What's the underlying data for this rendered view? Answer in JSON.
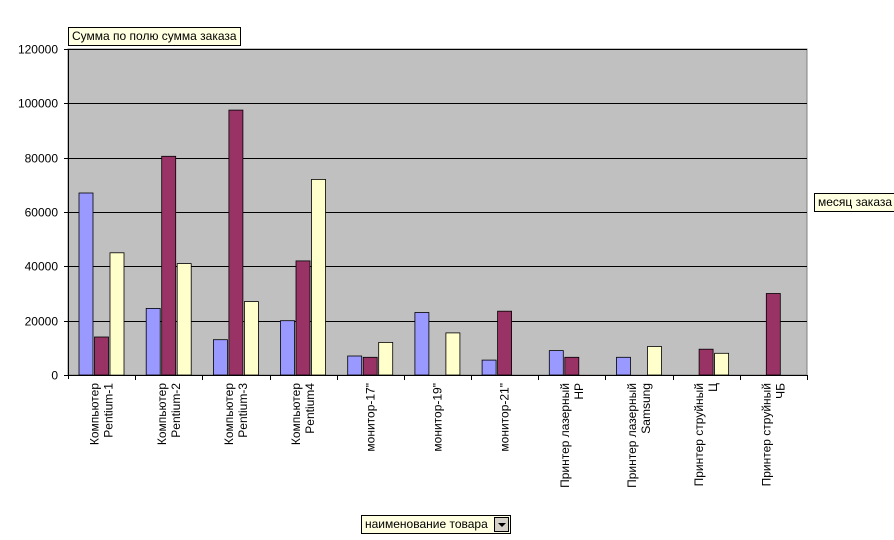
{
  "pivot": {
    "data_field": "Сумма по полю сумма заказа",
    "series_field": "месяц заказа",
    "category_field": "наименование товара"
  },
  "colors": {
    "plot_bg": "#c0c0c0",
    "series": [
      "#9999ff",
      "#993366",
      "#ffffcc"
    ]
  },
  "chart_data": {
    "type": "bar",
    "categories": [
      [
        "Компьютер",
        "Pentium-1"
      ],
      [
        "Компьютер",
        "Pentium-2"
      ],
      [
        "Компьютер",
        "Pentium-3"
      ],
      [
        "Компьютер",
        "Pentium4"
      ],
      [
        "монитор-17\""
      ],
      [
        "монитор-19\""
      ],
      [
        "монитор-21\""
      ],
      [
        "Принтер лазерный",
        "HP"
      ],
      [
        "Принтер лазерный",
        "Samsung"
      ],
      [
        "Принтер струйный",
        "Ц"
      ],
      [
        "Принтер струйный",
        "ЧБ"
      ]
    ],
    "series": [
      {
        "values": [
          67000,
          24500,
          13000,
          20000,
          7000,
          23000,
          5500,
          9000,
          6500,
          null,
          null
        ]
      },
      {
        "values": [
          14000,
          80500,
          97500,
          42000,
          6500,
          null,
          23500,
          6500,
          null,
          9500,
          30000
        ]
      },
      {
        "values": [
          45000,
          41000,
          27000,
          72000,
          12000,
          15500,
          null,
          null,
          10500,
          8000,
          null
        ]
      }
    ],
    "ylim": [
      0,
      120000
    ],
    "yticks": [
      0,
      20000,
      40000,
      60000,
      80000,
      100000,
      120000
    ],
    "grid": true,
    "legend": "none"
  }
}
